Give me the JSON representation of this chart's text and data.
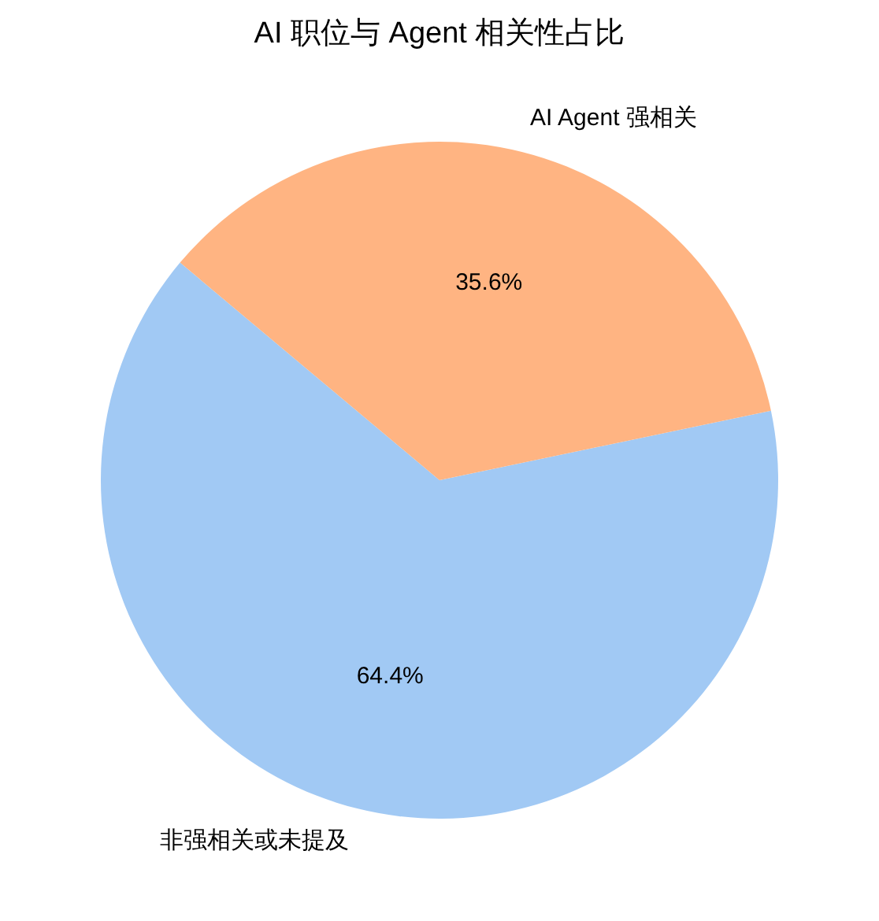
{
  "chart_data": {
    "type": "pie",
    "title": "AI 职位与 Agent 相关性占比",
    "categories": [
      "非强相关或未提及",
      "AI Agent 强相关"
    ],
    "values": [
      64.4,
      35.6
    ],
    "colors": [
      "#a1c9f4",
      "#ffb482"
    ],
    "value_labels": [
      "64.4%",
      "35.6%"
    ]
  }
}
